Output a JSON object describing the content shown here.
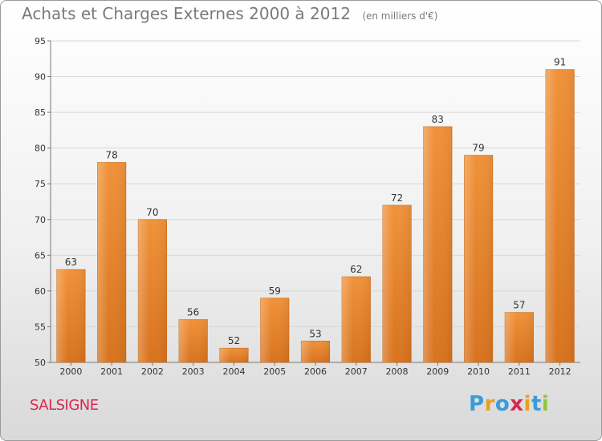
{
  "header": {
    "title": "Achats et Charges Externes 2000 à 2012",
    "subtitle": "(en milliers d'€)"
  },
  "footer": {
    "commune": "SALSIGNE",
    "logo_letters": [
      "P",
      "r",
      "o",
      "x",
      "i",
      "t",
      "i"
    ],
    "logo_colors": [
      "#3a9bd9",
      "#e8a020",
      "#3a9bd9",
      "#d9274f",
      "#e8a020",
      "#3a9bd9",
      "#8cc63f"
    ]
  },
  "chart_data": {
    "type": "bar",
    "title": "Achats et Charges Externes 2000 à 2012",
    "subtitle": "(en milliers d'€)",
    "categories": [
      "2000",
      "2001",
      "2002",
      "2003",
      "2004",
      "2005",
      "2006",
      "2007",
      "2008",
      "2009",
      "2010",
      "2011",
      "2012"
    ],
    "values": [
      63,
      78,
      70,
      56,
      52,
      59,
      53,
      62,
      72,
      83,
      79,
      57,
      91
    ],
    "ylim": [
      50,
      95
    ],
    "yticks": [
      50,
      55,
      60,
      65,
      70,
      75,
      80,
      85,
      90,
      95
    ],
    "grid": true,
    "bar_color": "#f0923a",
    "bar_color_dark": "#d8731e"
  }
}
